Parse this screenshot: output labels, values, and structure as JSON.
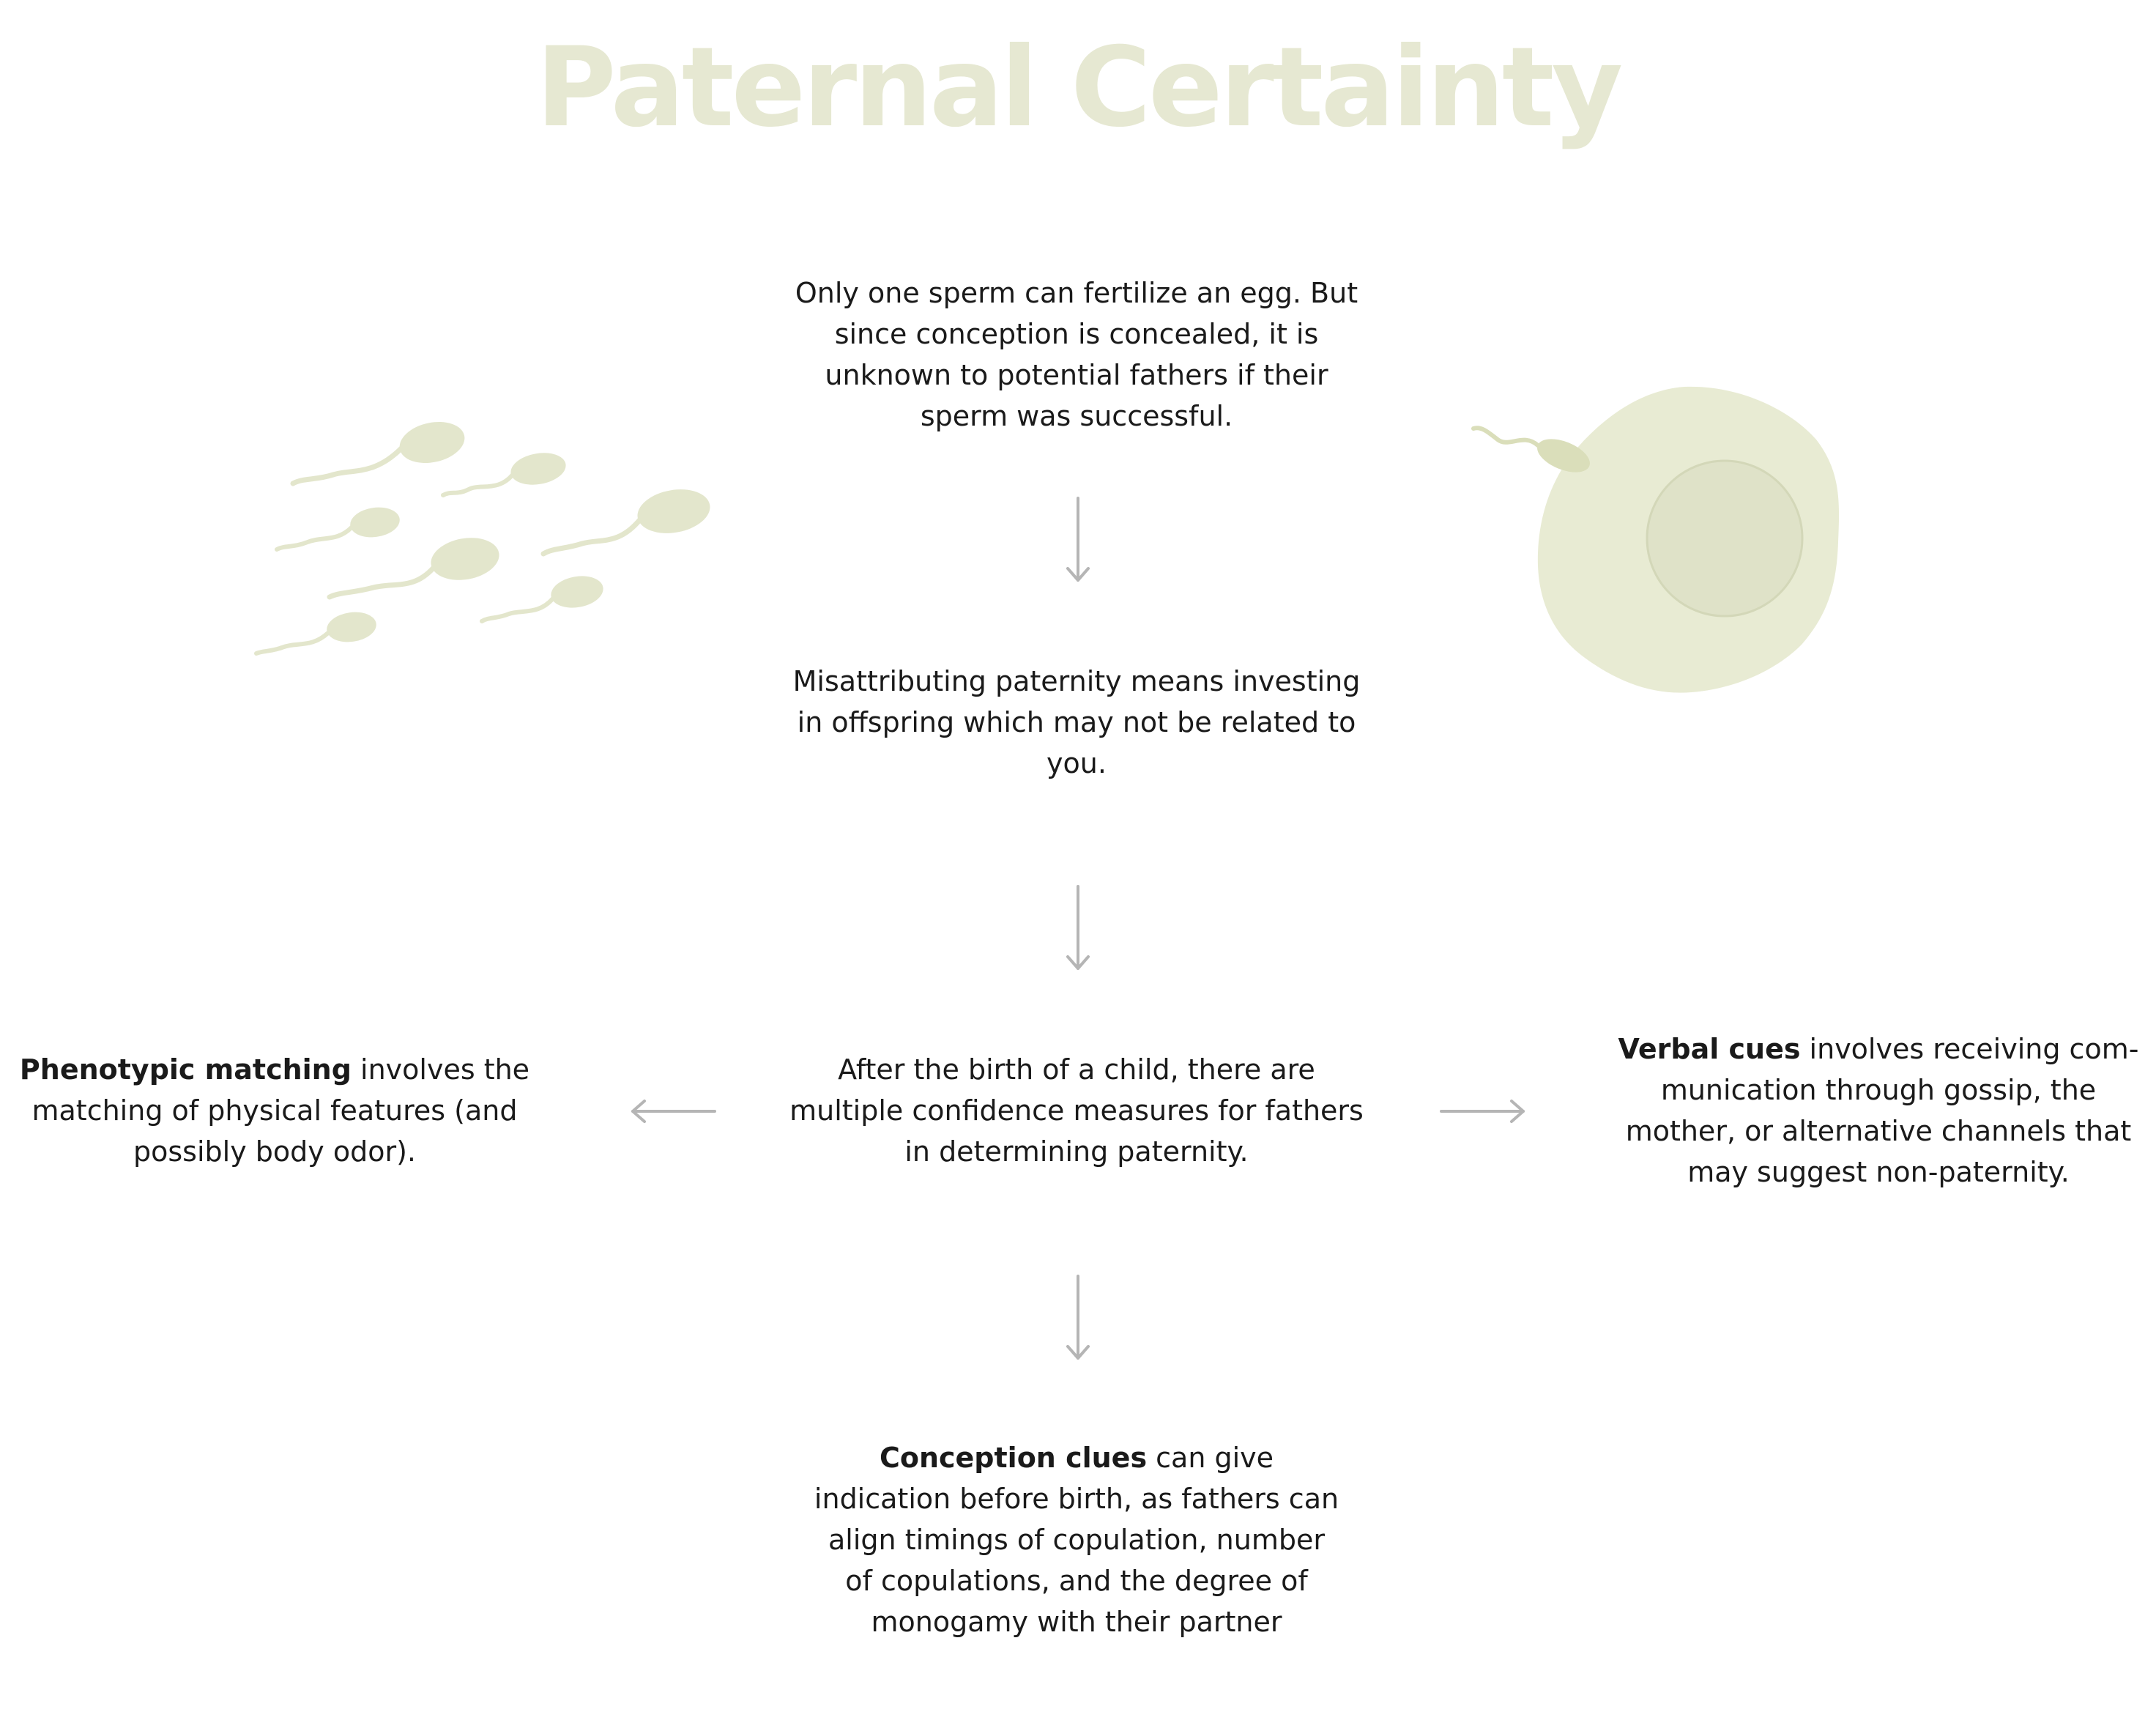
{
  "title": "Paternal Certainty",
  "colors": {
    "title": "#e6e8d2",
    "illustration": "#e3e6cc",
    "illustration_dark": "#d8dcbc",
    "arrow": "#b5b5b5",
    "text": "#1a1a1a"
  },
  "illustrations": {
    "left": "sperm-group-icon",
    "right": "egg-with-sperm-icon"
  },
  "nodes": {
    "conception": {
      "text": "Only one sperm can fertilize an egg. But since conception is concealed, it is unknown to potential fathers if their sperm was successful."
    },
    "misattribution": {
      "text": "Misattributing paternity means investing in offspring which may not be related to you."
    },
    "after_birth": {
      "text": "After the birth of a child, there are multiple confidence measures for fathers in determining paternity."
    },
    "phenotypic": {
      "bold": "Phenotypic matching",
      "text": " involves the matching of physical features (and possibly body odor)."
    },
    "verbal": {
      "bold": "Verbal cues",
      "text": " involves receiving com-munication through gossip, the mother, or alternative channels that may suggest non-paternity."
    },
    "clues": {
      "bold": "Conception clues",
      "text": " can give indication before birth, as fathers can align timings of copulation, number of copulations, and the degree of monogamy with their partner"
    }
  }
}
